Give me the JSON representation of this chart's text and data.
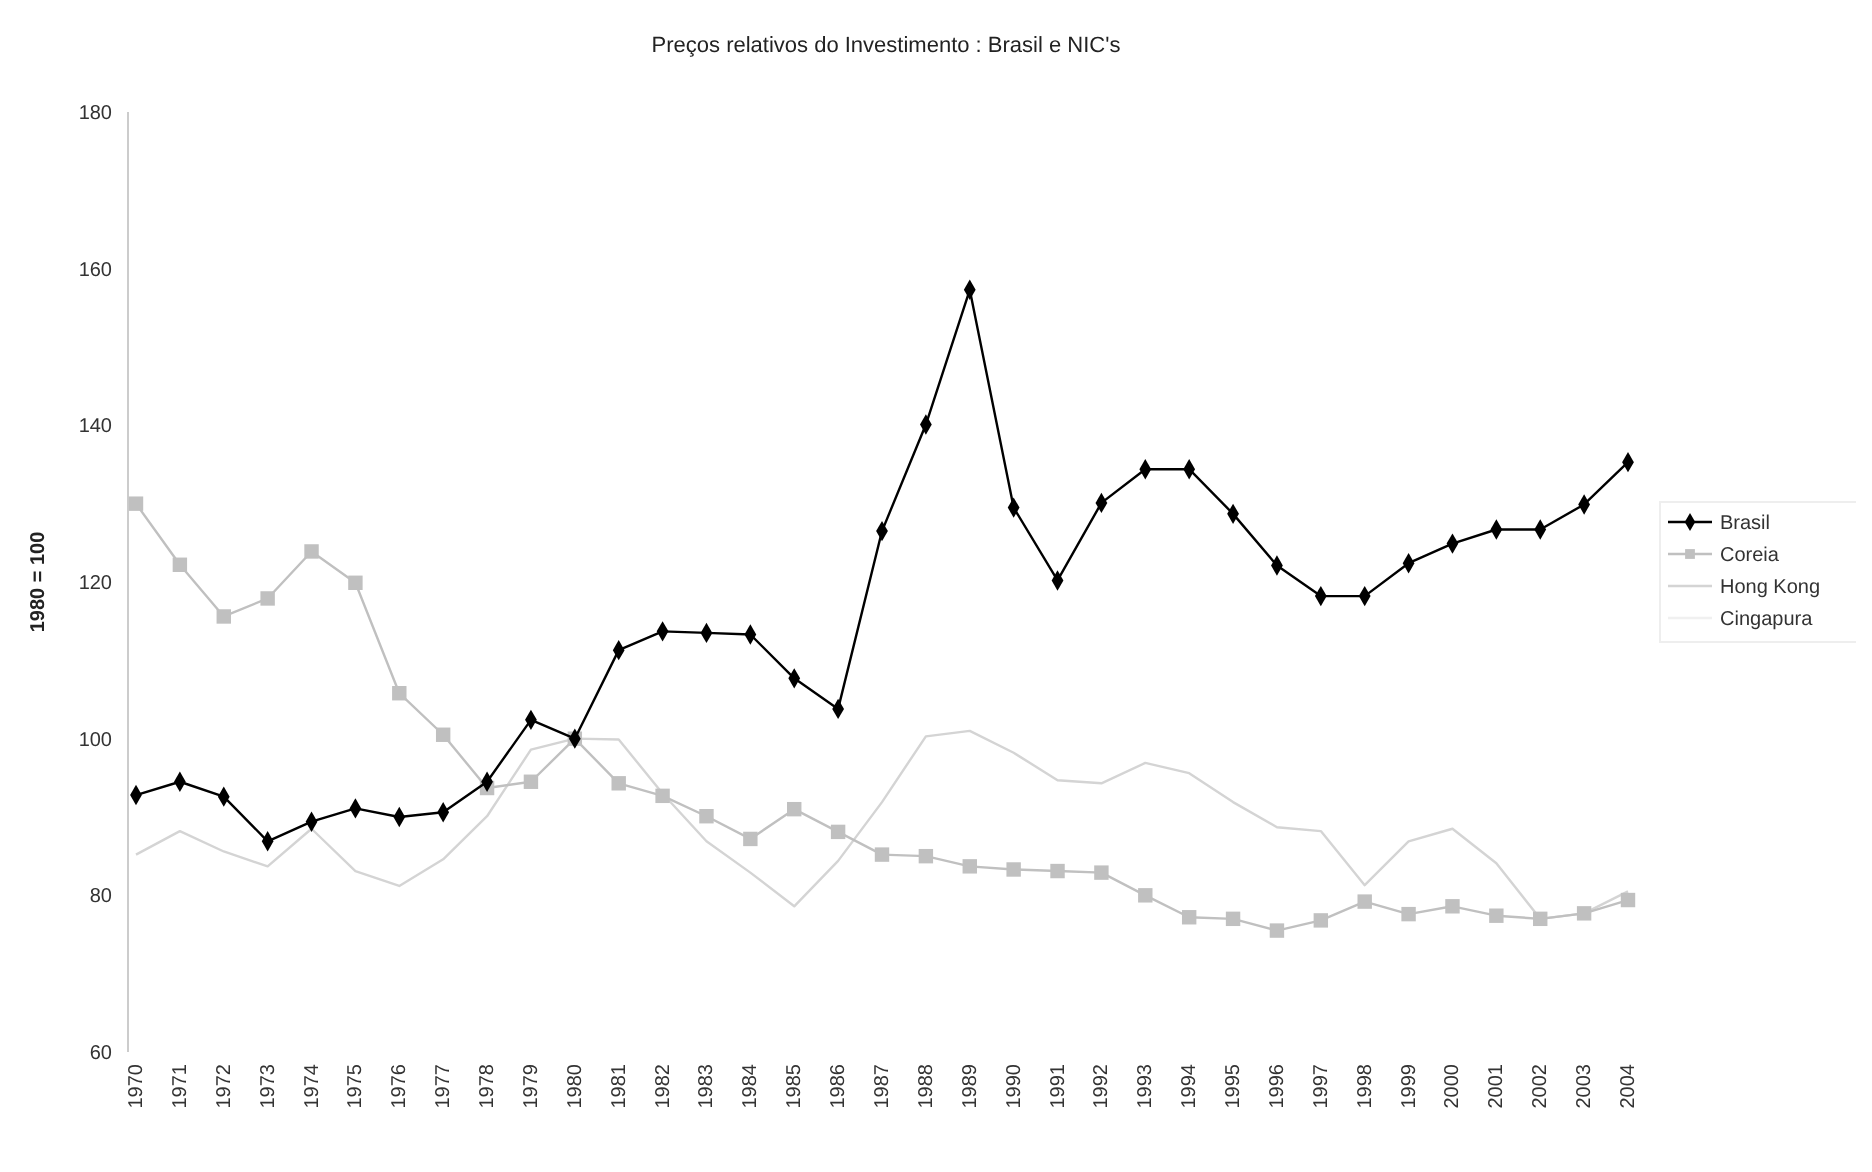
{
  "chart_data": {
    "type": "line",
    "title": "Preços relativos do Investimento : Brasil e NIC's",
    "ylabel": "1980 = 100",
    "categories": [
      "1970",
      "1971",
      "1972",
      "1973",
      "1974",
      "1975",
      "1976",
      "1977",
      "1978",
      "1979",
      "1980",
      "1981",
      "1982",
      "1983",
      "1984",
      "1985",
      "1986",
      "1987",
      "1988",
      "1989",
      "1990",
      "1991",
      "1992",
      "1993",
      "1994",
      "1995",
      "1996",
      "1997",
      "1998",
      "1999",
      "2000",
      "2001",
      "2002",
      "2003",
      "2004"
    ],
    "series": [
      {
        "name": "Brasil",
        "color": "#000000",
        "marker": "diamond",
        "values": [
          92.8,
          94.5,
          92.6,
          86.9,
          89.4,
          91.1,
          90.0,
          90.6,
          94.5,
          102.4,
          100,
          111.3,
          113.7,
          113.5,
          113.3,
          107.7,
          103.8,
          126.5,
          140.1,
          157.3,
          129.5,
          120.2,
          130.1,
          134.4,
          134.4,
          128.7,
          122.1,
          118.2,
          118.2,
          122.4,
          124.9,
          126.7,
          126.7,
          129.9,
          135.3
        ]
      },
      {
        "name": "Coreia",
        "color": "#c0c0c0",
        "marker": "square",
        "values": [
          130,
          122.2,
          115.6,
          117.9,
          123.9,
          119.9,
          105.8,
          100.5,
          93.7,
          94.5,
          100,
          94.3,
          92.7,
          90.1,
          87.2,
          91.0,
          88.1,
          85.2,
          85.0,
          83.7,
          83.3,
          83.1,
          82.9,
          80.0,
          77.2,
          77.0,
          75.5,
          76.8,
          79.2,
          77.6,
          78.6,
          77.4,
          77.0,
          77.7,
          79.4
        ]
      },
      {
        "name": "Hong Kong",
        "color": "#d4d4d4",
        "marker": "none",
        "values": [
          85.2,
          88.2,
          85.6,
          83.7,
          88.5,
          83.1,
          81.2,
          84.6,
          90.1,
          98.6,
          100,
          99.9,
          93.0,
          86.9,
          82.9,
          78.6,
          84.4,
          91.9,
          100.3,
          101.0,
          98.2,
          94.7,
          94.3,
          96.9,
          95.6,
          91.9,
          88.7,
          88.2,
          81.3,
          86.9,
          88.5,
          84.1,
          77.0,
          77.7,
          80.5
        ]
      },
      {
        "name": "Cingapura",
        "color": "#f0f0f0",
        "marker": "none",
        "values": [
          null,
          null,
          null,
          null,
          null,
          null,
          null,
          null,
          null,
          null,
          null,
          null,
          null,
          null,
          null,
          null,
          null,
          null,
          null,
          null,
          null,
          null,
          null,
          null,
          null,
          null,
          null,
          null,
          null,
          null,
          null,
          null,
          null,
          null,
          null
        ]
      }
    ],
    "ylim": [
      60,
      180
    ],
    "yticks": [
      60,
      80,
      100,
      120,
      140,
      160,
      180
    ],
    "grid": false,
    "legend": "right",
    "line_style": "solid"
  }
}
